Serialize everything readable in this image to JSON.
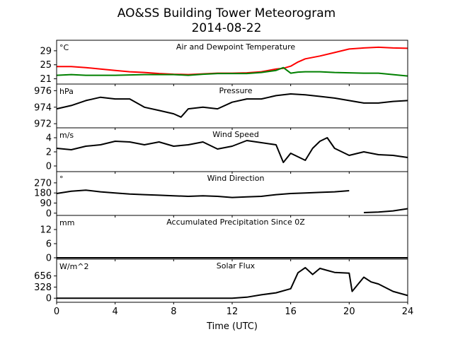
{
  "header": {
    "title": "AO&SS Building Tower Meteorogram",
    "subtitle": "2014-08-22"
  },
  "chart_data": {
    "type": "line",
    "xlabel": "Time (UTC)",
    "xlim": [
      0,
      24
    ],
    "xticks": [
      "0",
      "4",
      "8",
      "12",
      "16",
      "20",
      "24"
    ],
    "colors": {
      "temperature": "#ff0000",
      "dewpoint": "#008000",
      "default": "#000000"
    },
    "panels": [
      {
        "title": "Air and Dewpoint Temperature",
        "unit": "°C",
        "ylim": [
          19.5,
          32
        ],
        "yticks": [
          21,
          25,
          29
        ],
        "series": [
          {
            "key": "temperature",
            "x": [
              0,
              1,
              2,
              3,
              4,
              5,
              6,
              7,
              8,
              9,
              10,
              11,
              12,
              13,
              14,
              15,
              15.5,
              16,
              16.5,
              17,
              18,
              19,
              20,
              21,
              22,
              23,
              24
            ],
            "y": [
              24.5,
              24.5,
              24.2,
              23.8,
              23.4,
              23.0,
              22.8,
              22.5,
              22.3,
              22.2,
              22.4,
              22.6,
              22.6,
              22.7,
              23.0,
              23.8,
              24.0,
              24.6,
              25.8,
              26.7,
              27.5,
              28.5,
              29.5,
              29.8,
              30.0,
              29.8,
              29.7
            ]
          },
          {
            "key": "dewpoint",
            "x": [
              0,
              1,
              2,
              3,
              4,
              5,
              6,
              7,
              8,
              9,
              10,
              11,
              12,
              13,
              14,
              15,
              15.5,
              16,
              16.5,
              17,
              18,
              19,
              20,
              21,
              22,
              23,
              24
            ],
            "y": [
              22.0,
              22.2,
              22.0,
              22.0,
              22.0,
              22.1,
              22.2,
              22.2,
              22.2,
              22.0,
              22.3,
              22.5,
              22.5,
              22.5,
              22.8,
              23.4,
              24.2,
              22.6,
              22.9,
              23.0,
              23.0,
              22.8,
              22.7,
              22.6,
              22.6,
              22.2,
              21.8
            ]
          }
        ]
      },
      {
        "title": "Pressure",
        "unit": "hPa",
        "ylim": [
          971.5,
          976.8
        ],
        "yticks": [
          972,
          974,
          976
        ],
        "series": [
          {
            "key": "default",
            "x": [
              0,
              1,
              2,
              3,
              4,
              5,
              6,
              7,
              8,
              8.5,
              9,
              10,
              11,
              12,
              13,
              14,
              15,
              16,
              17,
              18,
              19,
              20,
              21,
              22,
              23,
              24
            ],
            "y": [
              973.8,
              974.2,
              974.8,
              975.2,
              975.0,
              975.0,
              974.0,
              973.6,
              973.2,
              972.8,
              973.8,
              974.0,
              973.8,
              974.6,
              975.0,
              975.0,
              975.4,
              975.6,
              975.5,
              975.3,
              975.1,
              974.8,
              974.5,
              974.5,
              974.7,
              974.8
            ]
          }
        ]
      },
      {
        "title": "Wind Speed",
        "unit": "m/s",
        "ylim": [
          -0.8,
          5.4
        ],
        "yticks": [
          0,
          2,
          4
        ],
        "series": [
          {
            "key": "default",
            "x": [
              0,
              1,
              2,
              3,
              4,
              5,
              6,
              7,
              8,
              9,
              10,
              11,
              12,
              13,
              14,
              15,
              15.5,
              16,
              17,
              17.5,
              18,
              18.5,
              19,
              20,
              21,
              22,
              23,
              24
            ],
            "y": [
              2.5,
              2.3,
              2.8,
              3.0,
              3.5,
              3.4,
              3.0,
              3.4,
              2.8,
              3.0,
              3.4,
              2.4,
              2.8,
              3.6,
              3.3,
              3.0,
              0.5,
              1.8,
              0.8,
              2.5,
              3.5,
              4.0,
              2.5,
              1.5,
              2.0,
              1.6,
              1.5,
              1.2
            ]
          }
        ]
      },
      {
        "title": "Wind Direction",
        "unit": "°",
        "ylim": [
          -20,
          370
        ],
        "yticks": [
          0,
          90,
          180,
          270
        ],
        "series": [
          {
            "key": "default",
            "x": [
              0,
              1,
              2,
              3,
              4,
              5,
              6,
              7,
              8,
              9,
              10,
              11,
              12,
              13,
              14,
              15,
              16,
              17,
              18,
              19,
              20
            ],
            "y": [
              175,
              195,
              205,
              190,
              180,
              170,
              165,
              160,
              155,
              150,
              155,
              150,
              140,
              145,
              150,
              165,
              175,
              180,
              185,
              190,
              200
            ]
          },
          {
            "key": "default",
            "x": [
              21,
              22,
              23,
              24
            ],
            "y": [
              5,
              10,
              20,
              40
            ]
          }
        ]
      },
      {
        "title": "Accumulated Precipitation Since 0Z",
        "unit": "mm",
        "ylim": [
          -0.6,
          18
        ],
        "yticks": [
          0,
          6,
          12
        ],
        "series": [
          {
            "key": "default",
            "x": [
              0,
              24
            ],
            "y": [
              0,
              0
            ]
          }
        ]
      },
      {
        "title": "Solar Flux",
        "unit": "W/m^2",
        "ylim": [
          -120,
          1150
        ],
        "yticks": [
          0,
          328,
          656
        ],
        "series": [
          {
            "key": "default",
            "x": [
              0,
              1,
              2,
              3,
              4,
              5,
              6,
              7,
              8,
              9,
              10,
              11,
              12,
              13,
              14,
              15,
              16,
              16.5,
              17,
              17.5,
              18,
              18.5,
              19,
              20,
              20.2,
              21,
              21.5,
              22,
              23,
              24
            ],
            "y": [
              0,
              0,
              0,
              0,
              0,
              0,
              0,
              0,
              0,
              0,
              0,
              0,
              0,
              30,
              100,
              160,
              280,
              750,
              900,
              700,
              880,
              820,
              760,
              740,
              200,
              620,
              480,
              420,
              200,
              80
            ]
          }
        ]
      }
    ]
  }
}
